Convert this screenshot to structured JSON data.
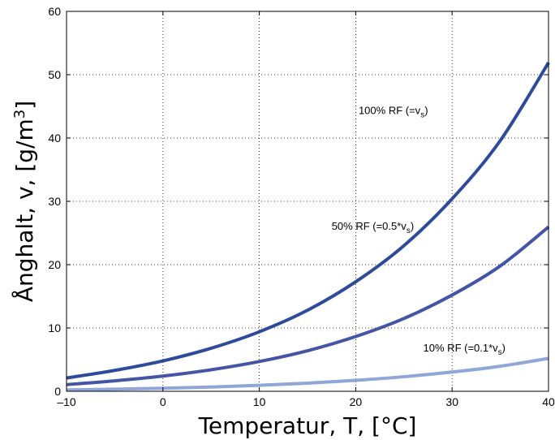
{
  "chart_data": {
    "type": "line",
    "xlabel": "Temperatur, T, [°C]",
    "ylabel": "Ånghalt, v, [g/m",
    "ylabel_sup": "3",
    "ylabel_end": "]",
    "xlim": [
      -10,
      40
    ],
    "ylim": [
      0,
      60
    ],
    "x_ticks": [
      -10,
      0,
      10,
      20,
      30,
      40
    ],
    "x_tick_labels": [
      "–10",
      "0",
      "10",
      "20",
      "30",
      "40"
    ],
    "y_ticks": [
      0,
      10,
      20,
      30,
      40,
      50,
      60
    ],
    "y_tick_labels": [
      "0",
      "10",
      "20",
      "30",
      "40",
      "50",
      "60"
    ],
    "grid": true,
    "x": [
      -10,
      -5,
      0,
      5,
      10,
      15,
      20,
      25,
      30,
      35,
      40
    ],
    "series": [
      {
        "values": [
          2.1,
          3.3,
          4.8,
          6.8,
          9.4,
          12.8,
          17.3,
          23.0,
          30.4,
          39.6,
          51.9
        ],
        "color": "#2e4a9a",
        "annotation": {
          "text": "100% RF (=v",
          "sub": "s",
          "tail": ")",
          "x": 20.3,
          "y": 43.8
        }
      },
      {
        "values": [
          1.05,
          1.65,
          2.4,
          3.4,
          4.7,
          6.4,
          8.65,
          11.5,
          15.2,
          19.8,
          25.95
        ],
        "color": "#4455a6",
        "annotation": {
          "text": "50% RF (=0.5*v",
          "sub": "s",
          "tail": ")",
          "x": 17.5,
          "y": 25.5
        }
      },
      {
        "values": [
          0.21,
          0.33,
          0.48,
          0.68,
          0.94,
          1.28,
          1.73,
          2.3,
          3.04,
          3.96,
          5.19
        ],
        "color": "#8fa6d8",
        "annotation": {
          "text": "10% RF (=0.1*v",
          "sub": "s",
          "tail": ")",
          "x": 27.0,
          "y": 6.3
        }
      }
    ]
  }
}
